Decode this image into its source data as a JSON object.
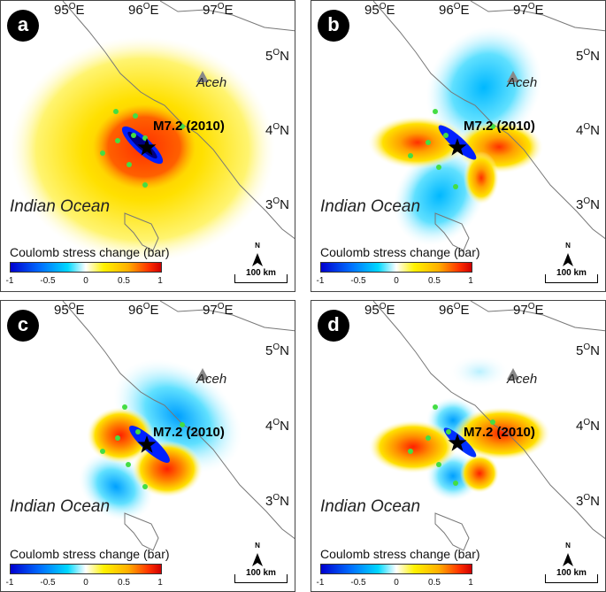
{
  "panels": [
    {
      "id": "a",
      "label": "a"
    },
    {
      "id": "b",
      "label": "b"
    },
    {
      "id": "c",
      "label": "c"
    },
    {
      "id": "d",
      "label": "d"
    }
  ],
  "map_labels": {
    "lon_95": "95",
    "lon_96": "96",
    "lon_97": "97",
    "lon_suffix": "E",
    "lat_5": "5",
    "lat_4": "4",
    "lat_3": "3",
    "lat_suffix": "N",
    "deg_sym": "O",
    "ocean": "Indian Ocean",
    "place": "Aceh",
    "quake": "M7.2 (2010)"
  },
  "colorbar": {
    "title": "Coulomb stress change (bar)",
    "ticks": [
      "-1",
      "-0.5",
      "0",
      "0.5",
      "1"
    ],
    "range": [
      -1,
      1
    ]
  },
  "scale": {
    "label": "100 km"
  },
  "north": {
    "label": "N"
  },
  "colors": {
    "positive": "#e00000",
    "negative": "#0000d0",
    "aftershock": "#44dd44",
    "volcano": "#888888",
    "coast": "#777777"
  }
}
